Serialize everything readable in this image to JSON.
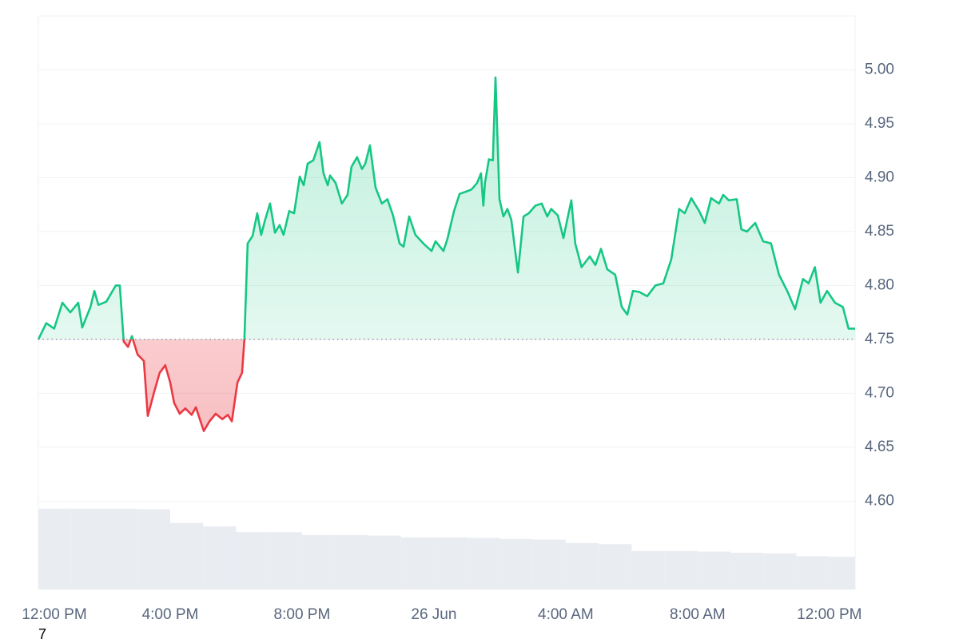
{
  "chart_data": {
    "type": "line",
    "x": [
      0,
      0.24,
      0.48,
      0.73,
      0.97,
      1.21,
      1.33,
      1.58,
      1.7,
      1.82,
      2.06,
      2.35,
      2.47,
      2.59,
      2.72,
      2.84,
      3.01,
      3.2,
      3.32,
      3.52,
      3.68,
      3.85,
      4.0,
      4.12,
      4.29,
      4.46,
      4.65,
      4.78,
      5.02,
      5.19,
      5.38,
      5.58,
      5.75,
      5.87,
      6.04,
      6.18,
      6.25,
      6.35,
      6.5,
      6.64,
      6.76,
      6.88,
      7.03,
      7.18,
      7.32,
      7.44,
      7.61,
      7.76,
      7.93,
      8.05,
      8.17,
      8.34,
      8.53,
      8.65,
      8.78,
      8.85,
      9.02,
      9.21,
      9.38,
      9.5,
      9.67,
      9.82,
      9.92,
      10.06,
      10.23,
      10.42,
      10.59,
      10.76,
      10.96,
      11.08,
      11.25,
      11.44,
      11.68,
      11.93,
      12.05,
      12.29,
      12.41,
      12.61,
      12.78,
      12.97,
      13.14,
      13.31,
      13.43,
      13.5,
      13.55,
      13.67,
      13.79,
      13.87,
      13.99,
      14.11,
      14.23,
      14.35,
      14.55,
      14.72,
      14.88,
      15.08,
      15.27,
      15.44,
      15.56,
      15.76,
      15.93,
      16.17,
      16.29,
      16.48,
      16.73,
      16.9,
      17.07,
      17.26,
      17.5,
      17.7,
      17.87,
      18.04,
      18.23,
      18.47,
      18.72,
      18.96,
      19.2,
      19.44,
      19.61,
      19.81,
      20.05,
      20.22,
      20.41,
      20.65,
      20.78,
      20.95,
      21.19,
      21.33,
      21.5,
      21.75,
      21.99,
      22.23,
      22.47,
      22.72,
      22.96,
      23.2,
      23.37,
      23.56,
      23.73,
      23.93,
      24.17,
      24.41,
      24.58,
      24.78
    ],
    "series": [
      {
        "color": "#16c784",
        "below_color": "#ea3943",
        "values": [
          4.75,
          4.765,
          4.76,
          4.784,
          4.775,
          4.784,
          4.761,
          4.78,
          4.795,
          4.782,
          4.785,
          4.8,
          4.8,
          4.748,
          4.743,
          4.753,
          4.736,
          4.73,
          4.679,
          4.702,
          4.719,
          4.726,
          4.71,
          4.691,
          4.681,
          4.686,
          4.68,
          4.687,
          4.665,
          4.674,
          4.681,
          4.676,
          4.68,
          4.674,
          4.71,
          4.719,
          4.75,
          4.839,
          4.846,
          4.867,
          4.847,
          4.861,
          4.876,
          4.849,
          4.856,
          4.847,
          4.869,
          4.867,
          4.901,
          4.893,
          4.913,
          4.916,
          4.933,
          4.904,
          4.893,
          4.902,
          4.895,
          4.876,
          4.884,
          4.91,
          4.919,
          4.908,
          4.913,
          4.93,
          4.891,
          4.876,
          4.88,
          4.865,
          4.839,
          4.836,
          4.864,
          4.847,
          4.839,
          4.832,
          4.841,
          4.832,
          4.843,
          4.869,
          4.885,
          4.887,
          4.889,
          4.895,
          4.904,
          4.874,
          4.895,
          4.917,
          4.916,
          4.993,
          4.88,
          4.864,
          4.871,
          4.861,
          4.812,
          4.864,
          4.867,
          4.874,
          4.876,
          4.864,
          4.871,
          4.865,
          4.844,
          4.879,
          4.839,
          4.817,
          4.827,
          4.819,
          4.834,
          4.815,
          4.81,
          4.78,
          4.773,
          4.795,
          4.794,
          4.79,
          4.8,
          4.802,
          4.824,
          4.871,
          4.867,
          4.881,
          4.869,
          4.858,
          4.881,
          4.876,
          4.884,
          4.879,
          4.88,
          4.852,
          4.85,
          4.858,
          4.841,
          4.839,
          4.81,
          4.795,
          4.778,
          4.806,
          4.802,
          4.817,
          4.784,
          4.795,
          4.784,
          4.78,
          4.76,
          4.76
        ]
      },
      {
        "type": "bar",
        "axis": "y2",
        "color": "#e9ecf1",
        "x": [
          0.5,
          1.5,
          2.5,
          3.5,
          4.5,
          5.5,
          6.5,
          7.5,
          8.5,
          9.5,
          10.5,
          11.5,
          12.5,
          13.5,
          14.5,
          15.5,
          16.5,
          17.5,
          18.5,
          19.5,
          20.5,
          21.5,
          22.5,
          23.5,
          24.5
        ],
        "values": [
          14.1,
          14.1,
          14.1,
          14.0,
          11.6,
          11.0,
          10.0,
          10.0,
          9.5,
          9.5,
          9.4,
          9.1,
          9.1,
          9.0,
          8.8,
          8.7,
          8.1,
          7.9,
          6.7,
          6.7,
          6.6,
          6.4,
          6.3,
          5.8,
          5.7
        ]
      }
    ],
    "baseline": 4.75,
    "xlim": [
      0,
      24.78
    ],
    "xticks": [
      {
        "value": 0,
        "label": "12:00 PM"
      },
      {
        "value": 4,
        "label": "4:00 PM"
      },
      {
        "value": 8,
        "label": "8:00 PM"
      },
      {
        "value": 12,
        "label": "26 Jun"
      },
      {
        "value": 16,
        "label": "4:00 AM"
      },
      {
        "value": 20,
        "label": "8:00 AM"
      },
      {
        "value": 24,
        "label": "12:00 PM"
      }
    ],
    "ylim": [
      4.518,
      5.05
    ],
    "yticks": [
      {
        "value": 4.6,
        "label": "4.60"
      },
      {
        "value": 4.65,
        "label": "4.65"
      },
      {
        "value": 4.7,
        "label": "4.70"
      },
      {
        "value": 4.75,
        "label": "4.75"
      },
      {
        "value": 4.8,
        "label": "4.80"
      },
      {
        "value": 4.85,
        "label": "4.85"
      },
      {
        "value": 4.9,
        "label": "4.90"
      },
      {
        "value": 4.95,
        "label": "4.95"
      },
      {
        "value": 5.0,
        "label": "5.00"
      }
    ],
    "y2lim": [
      0,
      100
    ],
    "grid": true,
    "annotation": "7"
  }
}
